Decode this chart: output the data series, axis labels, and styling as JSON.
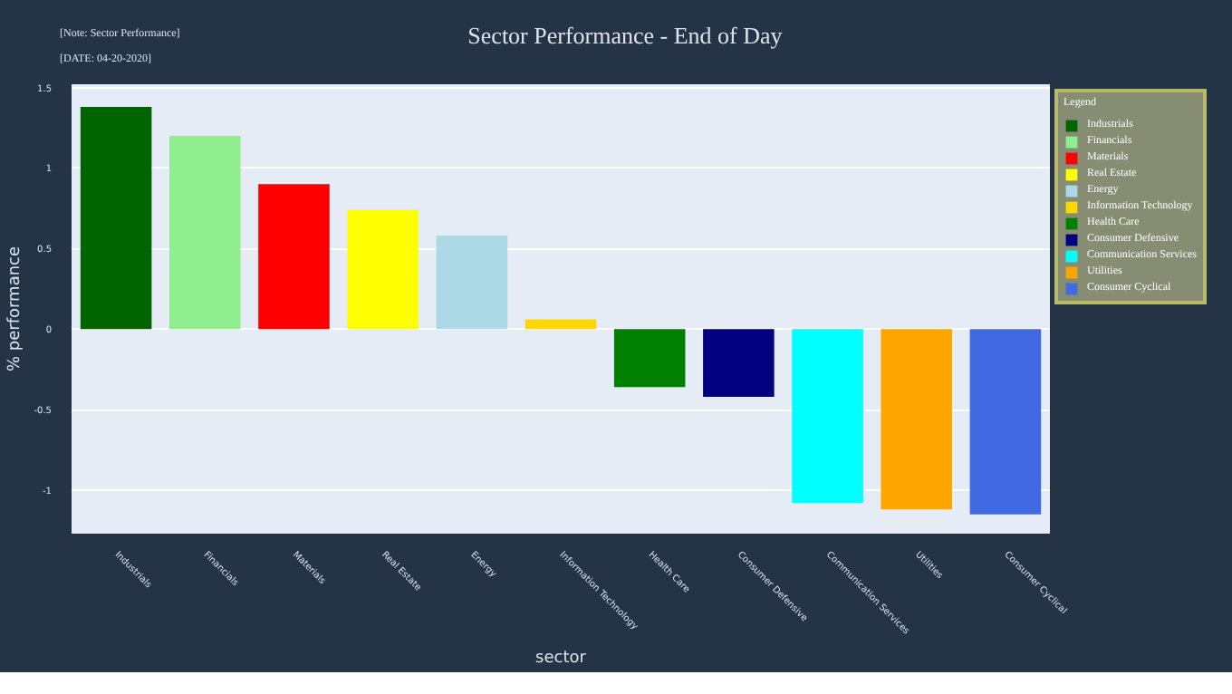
{
  "chart_data": {
    "type": "bar",
    "title": "Sector Performance - End of Day",
    "xlabel": "sector",
    "ylabel": "% performance",
    "annotations": [
      "[Note: Sector Performance]",
      "[DATE: 04-20-2020]"
    ],
    "categories": [
      "Industrials",
      "Financials",
      "Materials",
      "Real Estate",
      "Energy",
      "Information Technology",
      "Health Care",
      "Consumer Defensive",
      "Communication Services",
      "Utilities",
      "Consumer Cyclical"
    ],
    "series": [
      {
        "name": "Industrials",
        "color": "#006400",
        "values": [
          1.38,
          null,
          null,
          null,
          null,
          null,
          null,
          null,
          null,
          null,
          null
        ]
      },
      {
        "name": "Financials",
        "color": "#90ee90",
        "values": [
          null,
          1.2,
          null,
          null,
          null,
          null,
          null,
          null,
          null,
          null,
          null
        ]
      },
      {
        "name": "Materials",
        "color": "#ff0000",
        "values": [
          null,
          null,
          0.9,
          null,
          null,
          null,
          null,
          null,
          null,
          null,
          null
        ]
      },
      {
        "name": "Real Estate",
        "color": "#ffff00",
        "values": [
          null,
          null,
          null,
          0.74,
          null,
          null,
          null,
          null,
          null,
          null,
          null
        ]
      },
      {
        "name": "Energy",
        "color": "#add8e6",
        "values": [
          null,
          null,
          null,
          null,
          0.58,
          null,
          null,
          null,
          null,
          null,
          null
        ]
      },
      {
        "name": "Information Technology",
        "color": "#ffd700",
        "values": [
          null,
          null,
          null,
          null,
          null,
          0.06,
          null,
          null,
          null,
          null,
          null
        ]
      },
      {
        "name": "Health Care",
        "color": "#008000",
        "values": [
          null,
          null,
          null,
          null,
          null,
          null,
          -0.36,
          null,
          null,
          null,
          null
        ]
      },
      {
        "name": "Consumer Defensive",
        "color": "#000080",
        "values": [
          null,
          null,
          null,
          null,
          null,
          null,
          null,
          -0.42,
          null,
          null,
          null
        ]
      },
      {
        "name": "Communication Services",
        "color": "#00ffff",
        "values": [
          null,
          null,
          null,
          null,
          null,
          null,
          null,
          null,
          -1.08,
          null,
          null
        ]
      },
      {
        "name": "Utilities",
        "color": "#ffa500",
        "values": [
          null,
          null,
          null,
          null,
          null,
          null,
          null,
          null,
          null,
          -1.12,
          null
        ]
      },
      {
        "name": "Consumer Cyclical",
        "color": "#4169e1",
        "values": [
          null,
          null,
          null,
          null,
          null,
          null,
          null,
          null,
          null,
          null,
          -1.15
        ]
      }
    ],
    "ylim": [
      -1.27,
      1.52
    ],
    "yticks": [
      -1,
      -0.5,
      0,
      0.5,
      1,
      1.5
    ],
    "grid": "y",
    "legend": "top right",
    "legend_title": "Legend"
  }
}
